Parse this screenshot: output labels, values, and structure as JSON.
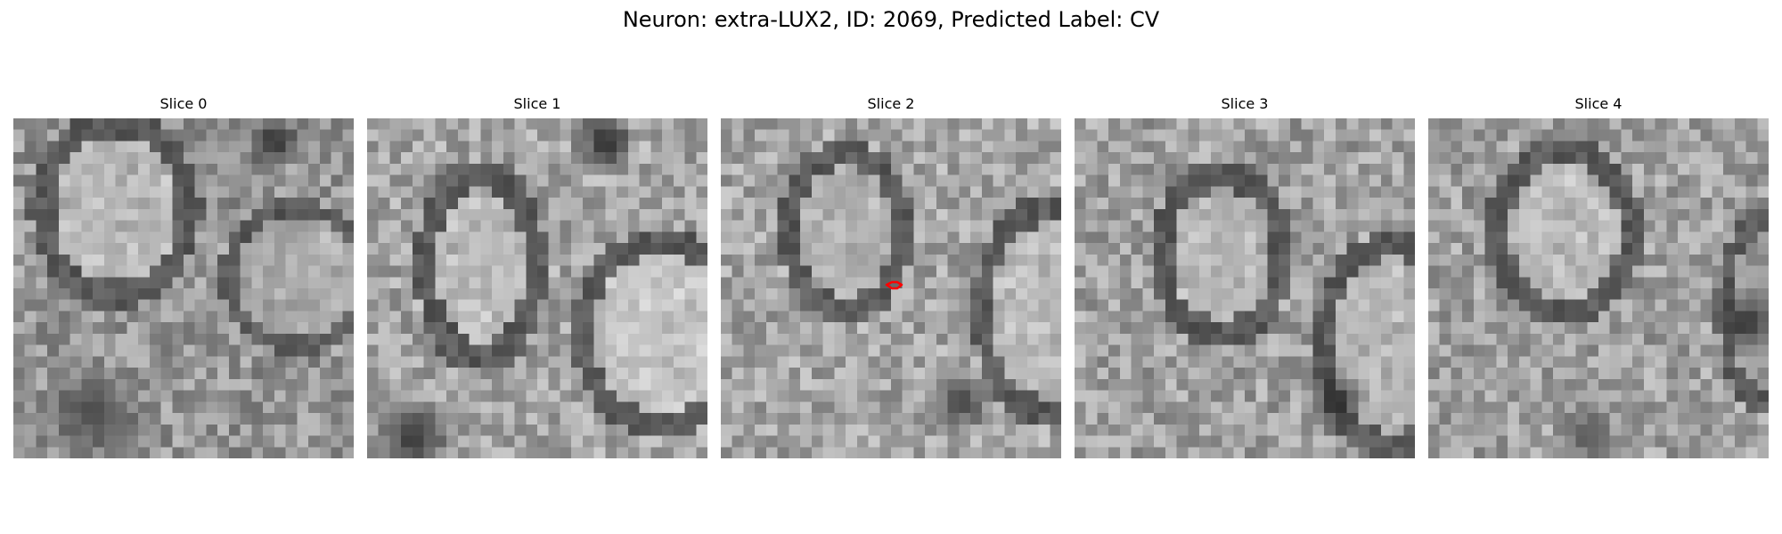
{
  "figure": {
    "title": "Neuron: extra-LUX2, ID: 2069, Predicted Label: CV"
  },
  "panels": [
    {
      "title": "Slice 0"
    },
    {
      "title": "Slice 1"
    },
    {
      "title": "Slice 2"
    },
    {
      "title": "Slice 3"
    },
    {
      "title": "Slice 4"
    }
  ],
  "marker": {
    "color": "#ff0000"
  }
}
